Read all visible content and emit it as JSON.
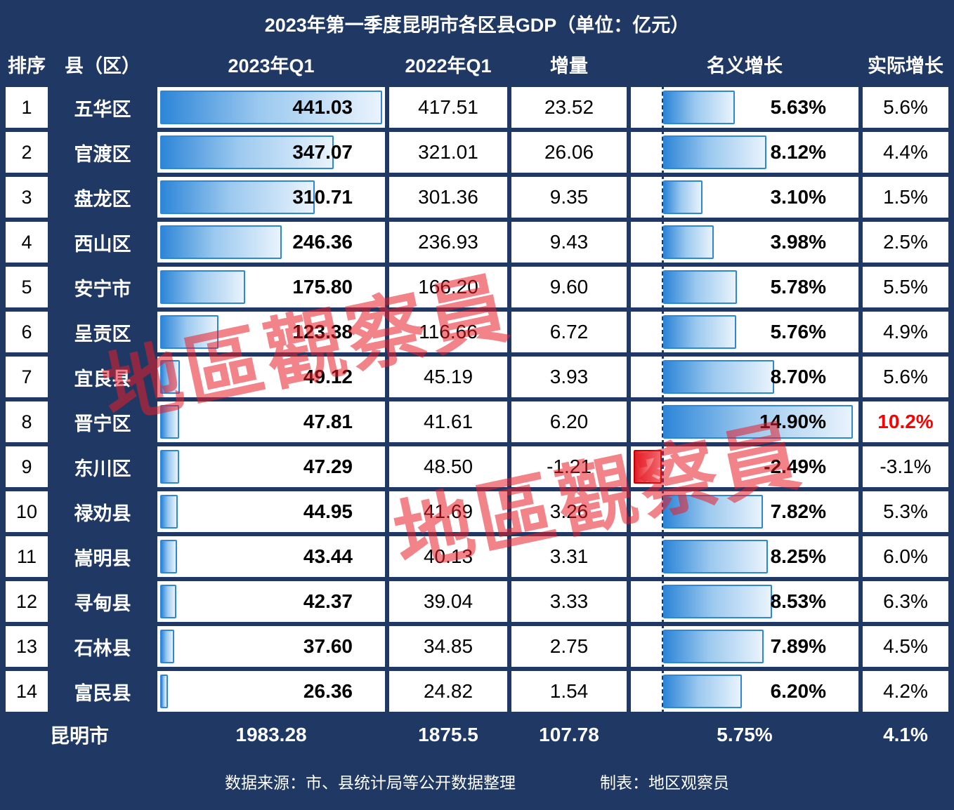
{
  "chart_data": {
    "type": "table",
    "title": "2023年第一季度昆明市各区县GDP（单位：亿元）",
    "columns": [
      "排序",
      "县（区）",
      "2023年Q1",
      "2022年Q1",
      "增量",
      "名义增长",
      "实际增长"
    ],
    "gdp_bar_max": 441.03,
    "growth_bar_max": 14.9,
    "rows": [
      {
        "rank": "1",
        "county": "五华区",
        "q2023": "441.03",
        "q2023_val": 441.03,
        "q2022": "417.51",
        "delta": "23.52",
        "nominal": "5.63%",
        "nominal_val": 5.63,
        "real": "5.6%",
        "real_red": false
      },
      {
        "rank": "2",
        "county": "官渡区",
        "q2023": "347.07",
        "q2023_val": 347.07,
        "q2022": "321.01",
        "delta": "26.06",
        "nominal": "8.12%",
        "nominal_val": 8.12,
        "real": "4.4%",
        "real_red": false
      },
      {
        "rank": "3",
        "county": "盘龙区",
        "q2023": "310.71",
        "q2023_val": 310.71,
        "q2022": "301.36",
        "delta": "9.35",
        "nominal": "3.10%",
        "nominal_val": 3.1,
        "real": "1.5%",
        "real_red": false
      },
      {
        "rank": "4",
        "county": "西山区",
        "q2023": "246.36",
        "q2023_val": 246.36,
        "q2022": "236.93",
        "delta": "9.43",
        "nominal": "3.98%",
        "nominal_val": 3.98,
        "real": "2.5%",
        "real_red": false
      },
      {
        "rank": "5",
        "county": "安宁市",
        "q2023": "175.80",
        "q2023_val": 175.8,
        "q2022": "166.20",
        "delta": "9.60",
        "nominal": "5.78%",
        "nominal_val": 5.78,
        "real": "5.5%",
        "real_red": false
      },
      {
        "rank": "6",
        "county": "呈贡区",
        "q2023": "123.38",
        "q2023_val": 123.38,
        "q2022": "116.66",
        "delta": "6.72",
        "nominal": "5.76%",
        "nominal_val": 5.76,
        "real": "4.9%",
        "real_red": false
      },
      {
        "rank": "7",
        "county": "宜良县",
        "q2023": "49.12",
        "q2023_val": 49.12,
        "q2022": "45.19",
        "delta": "3.93",
        "nominal": "8.70%",
        "nominal_val": 8.7,
        "real": "5.6%",
        "real_red": false
      },
      {
        "rank": "8",
        "county": "晋宁区",
        "q2023": "47.81",
        "q2023_val": 47.81,
        "q2022": "41.61",
        "delta": "6.20",
        "nominal": "14.90%",
        "nominal_val": 14.9,
        "real": "10.2%",
        "real_red": true
      },
      {
        "rank": "9",
        "county": "东川区",
        "q2023": "47.29",
        "q2023_val": 47.29,
        "q2022": "48.50",
        "delta": "-1.21",
        "nominal": "-2.49%",
        "nominal_val": -2.49,
        "real": "-3.1%",
        "real_red": false
      },
      {
        "rank": "10",
        "county": "禄劝县",
        "q2023": "44.95",
        "q2023_val": 44.95,
        "q2022": "41.69",
        "delta": "3.26",
        "nominal": "7.82%",
        "nominal_val": 7.82,
        "real": "5.3%",
        "real_red": false
      },
      {
        "rank": "11",
        "county": "嵩明县",
        "q2023": "43.44",
        "q2023_val": 43.44,
        "q2022": "40.13",
        "delta": "3.31",
        "nominal": "8.25%",
        "nominal_val": 8.25,
        "real": "6.0%",
        "real_red": false
      },
      {
        "rank": "12",
        "county": "寻甸县",
        "q2023": "42.37",
        "q2023_val": 42.37,
        "q2022": "39.04",
        "delta": "3.33",
        "nominal": "8.53%",
        "nominal_val": 8.53,
        "real": "6.3%",
        "real_red": false
      },
      {
        "rank": "13",
        "county": "石林县",
        "q2023": "37.60",
        "q2023_val": 37.6,
        "q2022": "34.85",
        "delta": "2.75",
        "nominal": "7.89%",
        "nominal_val": 7.89,
        "real": "4.5%",
        "real_red": false
      },
      {
        "rank": "14",
        "county": "富民县",
        "q2023": "26.36",
        "q2023_val": 26.36,
        "q2022": "24.82",
        "delta": "1.54",
        "nominal": "6.20%",
        "nominal_val": 6.2,
        "real": "4.2%",
        "real_red": false
      }
    ],
    "total": {
      "label": "昆明市",
      "q2023": "1983.28",
      "q2022": "1875.5",
      "delta": "107.78",
      "nominal": "5.75%",
      "real": "4.1%"
    }
  },
  "footer": {
    "source": "数据来源：市、县统计局等公开数据整理",
    "maker": "制表：地区观察员"
  },
  "watermark": "地區觀察員",
  "colors": {
    "navy": "#1F3864",
    "bar_blue": "#2E86D8",
    "bar_blue_light": "#E9F3FC",
    "bar_red": "#E31B23",
    "highlight_red": "#FF0000"
  }
}
